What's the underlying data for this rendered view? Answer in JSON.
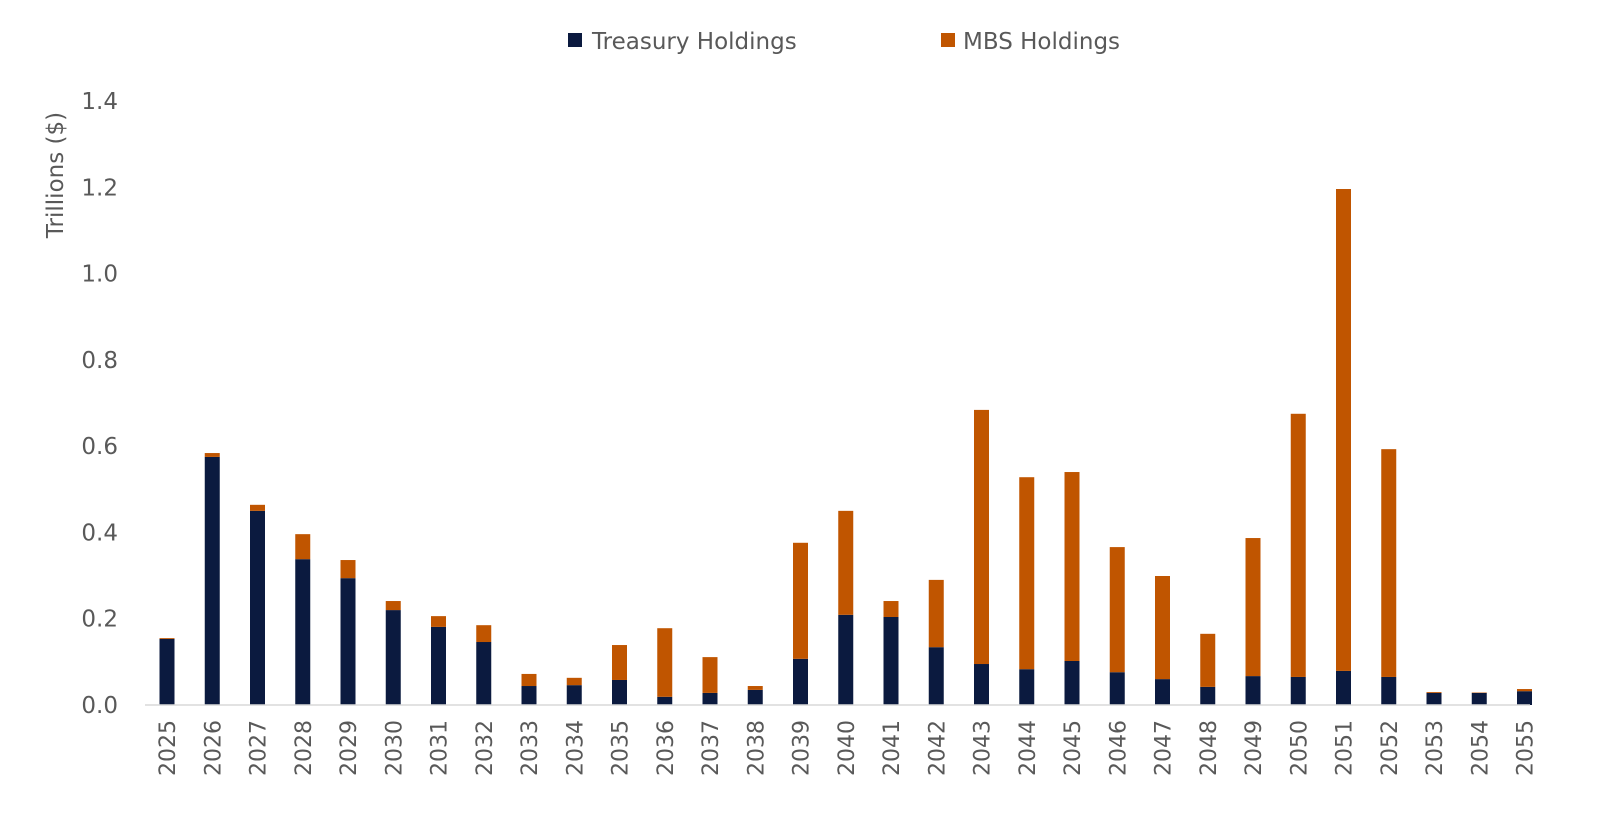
{
  "chart_data": {
    "type": "bar",
    "stacked": true,
    "title": "",
    "xlabel": "",
    "ylabel": "Trillions ($)",
    "ylim": [
      0,
      1.4
    ],
    "yticks": [
      "0.0",
      "0.2",
      "0.4",
      "0.6",
      "0.8",
      "1.0",
      "1.2",
      "1.4"
    ],
    "grid": false,
    "legend_position": "top-center",
    "categories": [
      "2025",
      "2026",
      "2027",
      "2028",
      "2029",
      "2030",
      "2031",
      "2032",
      "2033",
      "2034",
      "2035",
      "2036",
      "2037",
      "2038",
      "2039",
      "2040",
      "2041",
      "2042",
      "2043",
      "2044",
      "2045",
      "2046",
      "2047",
      "2048",
      "2049",
      "2050",
      "2051",
      "2052",
      "2053",
      "2054",
      "2055"
    ],
    "series": [
      {
        "name": "Treasury Holdings",
        "color": "#0b1a3f",
        "values": [
          0.153,
          0.575,
          0.45,
          0.338,
          0.294,
          0.22,
          0.181,
          0.146,
          0.044,
          0.046,
          0.058,
          0.019,
          0.028,
          0.035,
          0.107,
          0.209,
          0.204,
          0.134,
          0.095,
          0.083,
          0.102,
          0.076,
          0.06,
          0.042,
          0.067,
          0.065,
          0.079,
          0.065,
          0.028,
          0.028,
          0.032
        ]
      },
      {
        "name": "MBS Holdings",
        "color": "#c05500",
        "values": [
          0.002,
          0.009,
          0.014,
          0.058,
          0.042,
          0.021,
          0.025,
          0.039,
          0.028,
          0.017,
          0.081,
          0.159,
          0.083,
          0.009,
          0.269,
          0.241,
          0.037,
          0.156,
          0.589,
          0.445,
          0.438,
          0.29,
          0.239,
          0.123,
          0.32,
          0.61,
          1.117,
          0.528,
          0.002,
          0.001,
          0.005
        ]
      }
    ]
  }
}
